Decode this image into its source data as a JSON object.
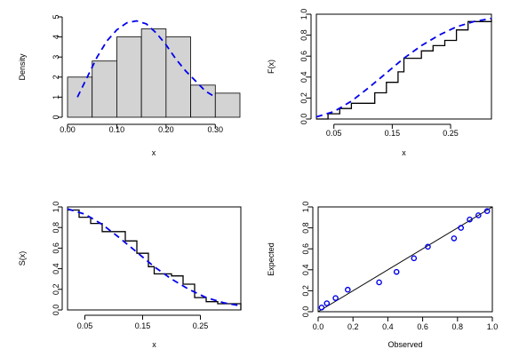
{
  "chart_data": [
    {
      "type": "bar",
      "subtype": "histogram-with-density",
      "xlabel": "x",
      "ylabel": "Density",
      "bins": [
        [
          0.0,
          0.05
        ],
        [
          0.05,
          0.1
        ],
        [
          0.1,
          0.15
        ],
        [
          0.15,
          0.2
        ],
        [
          0.2,
          0.25
        ],
        [
          0.25,
          0.3
        ],
        [
          0.3,
          0.35
        ]
      ],
      "values": [
        2.0,
        2.8,
        4.0,
        4.4,
        4.0,
        1.6,
        1.2
      ],
      "xlim": [
        0.0,
        0.35
      ],
      "ylim": [
        0,
        5
      ],
      "xticks": [
        0.0,
        0.1,
        0.2,
        0.3
      ],
      "xtick_labels": [
        "0.00",
        "0.10",
        "0.20",
        "0.30"
      ],
      "yticks": [
        0,
        1,
        2,
        3,
        4,
        5
      ],
      "ytick_labels": [
        "0",
        "1",
        "2",
        "3",
        "4",
        "5"
      ],
      "bar_color": "#d3d3d3",
      "fitted_curve": {
        "style": "dashed",
        "color": "#0000ee",
        "x": [
          0.02,
          0.04,
          0.06,
          0.08,
          0.1,
          0.12,
          0.14,
          0.16,
          0.18,
          0.2,
          0.22,
          0.24,
          0.26,
          0.28,
          0.3
        ],
        "y": [
          1.0,
          2.0,
          3.0,
          3.8,
          4.35,
          4.7,
          4.8,
          4.65,
          4.2,
          3.6,
          2.9,
          2.3,
          1.8,
          1.3,
          1.0
        ]
      }
    },
    {
      "type": "line",
      "subtype": "empirical-vs-fitted-cdf",
      "xlabel": "x",
      "ylabel": "F(x)",
      "xlim": [
        0.02,
        0.32
      ],
      "ylim": [
        0.0,
        1.0
      ],
      "xticks": [
        0.05,
        0.15,
        0.25
      ],
      "xtick_labels": [
        "0.05",
        "0.15",
        "0.25"
      ],
      "yticks": [
        0.0,
        0.2,
        0.4,
        0.6,
        0.8,
        1.0
      ],
      "ytick_labels": [
        "0.0",
        "0.2",
        "0.4",
        "0.6",
        "0.8",
        "1.0"
      ],
      "series": [
        {
          "style": "step",
          "color": "#000000",
          "x": [
            0.02,
            0.04,
            0.06,
            0.08,
            0.12,
            0.14,
            0.16,
            0.17,
            0.2,
            0.22,
            0.24,
            0.26,
            0.28,
            0.32
          ],
          "y": [
            0.0,
            0.05,
            0.1,
            0.15,
            0.25,
            0.35,
            0.45,
            0.58,
            0.65,
            0.7,
            0.75,
            0.85,
            0.93,
            0.95
          ]
        },
        {
          "style": "dashed",
          "color": "#0000ee",
          "x": [
            0.02,
            0.05,
            0.08,
            0.11,
            0.14,
            0.17,
            0.2,
            0.23,
            0.26,
            0.29,
            0.32
          ],
          "y": [
            0.02,
            0.07,
            0.17,
            0.3,
            0.44,
            0.58,
            0.7,
            0.8,
            0.88,
            0.93,
            0.96
          ]
        }
      ]
    },
    {
      "type": "line",
      "subtype": "empirical-vs-fitted-survival",
      "xlabel": "x",
      "ylabel": "S(x)",
      "xlim": [
        0.02,
        0.32
      ],
      "ylim": [
        0.0,
        1.0
      ],
      "xticks": [
        0.05,
        0.15,
        0.25
      ],
      "xtick_labels": [
        "0.05",
        "0.15",
        "0.25"
      ],
      "yticks": [
        0.0,
        0.2,
        0.4,
        0.6,
        0.8,
        1.0
      ],
      "ytick_labels": [
        "0.0",
        "0.2",
        "0.4",
        "0.6",
        "0.8",
        "1.0"
      ],
      "series": [
        {
          "style": "step",
          "color": "#000000",
          "x": [
            0.02,
            0.04,
            0.06,
            0.08,
            0.12,
            0.14,
            0.16,
            0.17,
            0.2,
            0.22,
            0.24,
            0.26,
            0.28,
            0.32
          ],
          "y": [
            0.97,
            0.9,
            0.84,
            0.76,
            0.67,
            0.55,
            0.42,
            0.35,
            0.33,
            0.25,
            0.12,
            0.08,
            0.06,
            0.0
          ]
        },
        {
          "style": "dashed",
          "color": "#0000ee",
          "x": [
            0.02,
            0.05,
            0.08,
            0.11,
            0.14,
            0.17,
            0.2,
            0.23,
            0.26,
            0.29,
            0.32
          ],
          "y": [
            0.98,
            0.93,
            0.83,
            0.7,
            0.56,
            0.42,
            0.3,
            0.2,
            0.12,
            0.07,
            0.04
          ]
        }
      ]
    },
    {
      "type": "scatter",
      "subtype": "pp-plot",
      "xlabel": "Observed",
      "ylabel": "Expected",
      "xlim": [
        0.0,
        1.0
      ],
      "ylim": [
        0.0,
        1.0
      ],
      "xticks": [
        0.0,
        0.2,
        0.4,
        0.6,
        0.8,
        1.0
      ],
      "xtick_labels": [
        "0.0",
        "0.2",
        "0.4",
        "0.6",
        "0.8",
        "1.0"
      ],
      "yticks": [
        0.0,
        0.2,
        0.4,
        0.6,
        0.8,
        1.0
      ],
      "ytick_labels": [
        "0.0",
        "0.2",
        "0.4",
        "0.6",
        "0.8",
        "1.0"
      ],
      "point_color": "#0000ee",
      "x": [
        0.02,
        0.05,
        0.1,
        0.17,
        0.35,
        0.45,
        0.55,
        0.63,
        0.78,
        0.82,
        0.87,
        0.92,
        0.97
      ],
      "y": [
        0.04,
        0.08,
        0.13,
        0.21,
        0.28,
        0.38,
        0.51,
        0.62,
        0.7,
        0.8,
        0.88,
        0.92,
        0.96
      ],
      "reference_line": {
        "from": [
          0.0,
          0.0
        ],
        "to": [
          1.0,
          1.0
        ],
        "color": "#000000"
      }
    }
  ]
}
